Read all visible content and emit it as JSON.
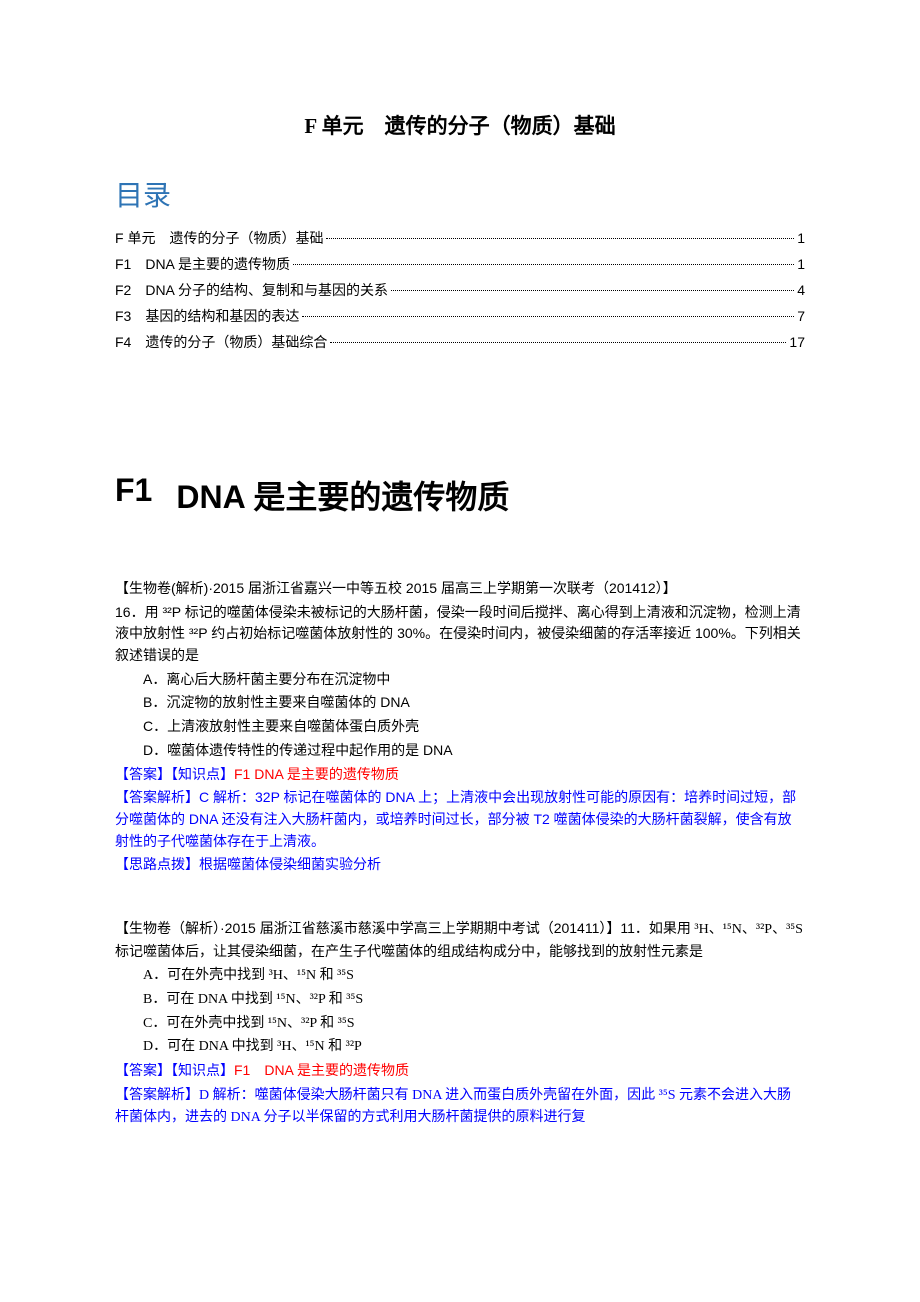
{
  "title": "F 单元　遗传的分子（物质）基础",
  "toc_heading": "目录",
  "toc": [
    {
      "label": "F 单元　遗传的分子（物质）基础",
      "page": "1"
    },
    {
      "label": "F1　DNA 是主要的遗传物质 ",
      "page": "1"
    },
    {
      "label": "F2　DNA 分子的结构、复制和与基因的关系 ",
      "page": "4"
    },
    {
      "label": "F3　基因的结构和基因的表达 ",
      "page": "7"
    },
    {
      "label": "F4　遗传的分子（物质）基础综合 ",
      "page": "17"
    }
  ],
  "section1": {
    "code": "F1",
    "title": "DNA 是主要的遗传物质"
  },
  "q1": {
    "source": "【生物卷(解析)·2015 届浙江省嘉兴一中等五校 2015 届高三上学期第一次联考（201412）】",
    "num": "16．",
    "stem": "用 ³²P 标记的噬菌体侵染未被标记的大肠杆菌，侵染一段时间后搅拌、离心得到上清液和沉淀物，检测上清液中放射性 ³²P 约占初始标记噬菌体放射性的 30%。在侵染时间内，被侵染细菌的存活率接近 100%。下列相关叙述错误的是",
    "options": [
      "A．离心后大肠杆菌主要分布在沉淀物中",
      "B．沉淀物的放射性主要来自噬菌体的 DNA",
      "C．上清液放射性主要来自噬菌体蛋白质外壳",
      "D．噬菌体遗传特性的传递过程中起作用的是 DNA"
    ],
    "kp_prefix": "【答案】【知识点】",
    "kp": "F1 DNA 是主要的遗传物质",
    "ans_prefix": "【答案解析】",
    "ans": "C 解析：32P 标记在噬菌体的 DNA 上；上清液中会出现放射性可能的原因有：培养时间过短，部分噬菌体的 DNA 还没有注入大肠杆菌内，或培养时间过长，部分被 T2 噬菌体侵染的大肠杆菌裂解，使含有放射性的子代噬菌体存在于上清液。",
    "hint_prefix": "【思路点拨】",
    "hint": "根据噬菌体侵染细菌实验分析"
  },
  "q2": {
    "source": "【生物卷（解析）·2015 届浙江省慈溪市慈溪中学高三上学期期中考试（201411）】",
    "num": "11．",
    "stem": "如果用 ³H、¹⁵N、³²P、³⁵S 标记噬菌体后，让其侵染细菌，在产生子代噬菌体的组成结构成分中，能够找到的放射性元素是",
    "options": [
      "A．可在外壳中找到 ³H、¹⁵N 和 ³⁵S",
      "B．可在 DNA 中找到 ¹⁵N、³²P 和 ³⁵S",
      "C．可在外壳中找到 ¹⁵N、³²P 和 ³⁵S",
      "D．可在 DNA 中找到 ³H、¹⁵N 和 ³²P"
    ],
    "kp_prefix": "【答案】【知识点】",
    "kp": "F1　DNA 是主要的遗传物质",
    "ans_prefix": "【答案解析】",
    "ans": "D 解析：噬菌体侵染大肠杆菌只有 DNA 进入而蛋白质外壳留在外面，因此 ³⁵S 元素不会进入大肠杆菌体内，进去的 DNA 分子以半保留的方式利用大肠杆菌提供的原料进行复"
  },
  "colors": {
    "heading_blue": "#2e74b5",
    "link_blue": "#0000ff",
    "red": "#ff0000",
    "text": "#000000",
    "bg": "#ffffff"
  }
}
